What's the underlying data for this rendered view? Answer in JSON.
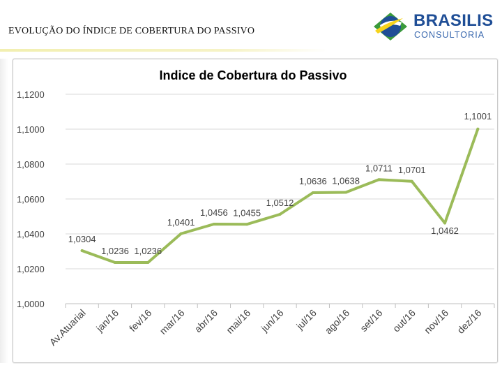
{
  "header": {
    "title": "EVOLUÇÃO DO ÍNDICE DE COBERTURA DO PASSIVO"
  },
  "logo": {
    "name": "BRASILIS",
    "subtitle": "CONSULTORIA",
    "colors": {
      "blue": "#1f4e96",
      "green": "#3a9a3c",
      "yellow": "#f5d31c"
    }
  },
  "chart_data": {
    "type": "line",
    "title": "Indice de Cobertura do Passivo",
    "xlabel": "",
    "ylabel": "",
    "categories": [
      "Av.Atuarial",
      "jan/16",
      "fev/16",
      "mar/16",
      "abr/16",
      "mai/16",
      "jun/16",
      "jul/16",
      "ago/16",
      "set/16",
      "out/16",
      "nov/16",
      "dez/16"
    ],
    "series": [
      {
        "values": [
          1.0304,
          1.0236,
          1.0236,
          1.0401,
          1.0456,
          1.0455,
          1.0512,
          1.0636,
          1.0638,
          1.0711,
          1.0701,
          1.0462,
          1.1001
        ],
        "labels": [
          "1,0304",
          "1,0236",
          "1,0236",
          "1,0401",
          "1,0456",
          "1,0455",
          "1,0512",
          "1,0636",
          "1,0638",
          "1,0711",
          "1,0701",
          "1,0462",
          "1,1001"
        ],
        "color": "#9bbb59"
      }
    ],
    "ylim": [
      1.0,
      1.12
    ],
    "yticks": [
      1.0,
      1.02,
      1.04,
      1.06,
      1.08,
      1.1,
      1.12
    ],
    "ytick_labels": [
      "1,0000",
      "1,0200",
      "1,0400",
      "1,0600",
      "1,0800",
      "1,1000",
      "1,1200"
    ],
    "grid": true,
    "legend": "none"
  }
}
